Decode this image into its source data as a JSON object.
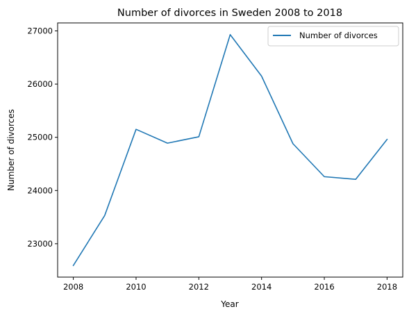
{
  "chart_data": {
    "type": "line",
    "title": "Number of divorces in Sweden 2008 to 2018",
    "xlabel": "Year",
    "ylabel": "Number of divorces",
    "x": [
      2008,
      2009,
      2010,
      2011,
      2012,
      2013,
      2014,
      2015,
      2016,
      2017,
      2018
    ],
    "series": [
      {
        "name": "Number of divorces",
        "color": "#1f77b4",
        "values": [
          22590,
          23530,
          25150,
          24890,
          25010,
          26930,
          26150,
          24880,
          24260,
          24210,
          24960
        ]
      }
    ],
    "xticks": [
      "2008",
      "2010",
      "2012",
      "2014",
      "2016",
      "2018"
    ],
    "yticks": [
      "23000",
      "24000",
      "25000",
      "26000",
      "27000"
    ],
    "xlim": [
      2007.5,
      2018.5
    ],
    "ylim": [
      22372,
      27150
    ],
    "grid": false,
    "legend_position": "top-right"
  }
}
